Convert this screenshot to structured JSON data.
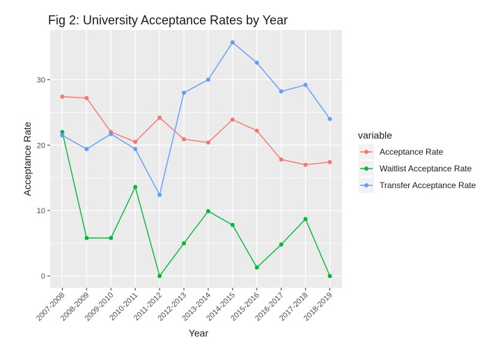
{
  "chart_data": {
    "type": "line",
    "title": "Fig 2: University Acceptance Rates by Year",
    "xlabel": "Year",
    "ylabel": "Acceptance Rate",
    "categories": [
      "2007-2008",
      "2008-2009",
      "2009-2010",
      "2010-2011",
      "2011-2012",
      "2012-2013",
      "2013-2014",
      "2014-2015",
      "2015-2016",
      "2016-2017",
      "2017-2018",
      "2018-2019"
    ],
    "ylim": [
      -1.8,
      37.6
    ],
    "yticks": [
      0,
      10,
      20,
      30
    ],
    "grid": true,
    "legend": {
      "title": "variable",
      "placement": "right"
    },
    "series": [
      {
        "name": "Acceptance Rate",
        "color": "#F8766D",
        "values": [
          27.4,
          27.2,
          22.0,
          20.5,
          24.2,
          20.9,
          20.4,
          23.9,
          22.2,
          17.8,
          17.0,
          17.4
        ]
      },
      {
        "name": "Waitlist Acceptance Rate",
        "color": "#00BA38",
        "values": [
          22.0,
          5.8,
          5.8,
          13.6,
          0.0,
          5.0,
          9.9,
          7.8,
          1.3,
          4.8,
          8.7,
          0.0
        ]
      },
      {
        "name": "Transfer Acceptance Rate",
        "color": "#619CFF",
        "values": [
          21.5,
          19.4,
          21.7,
          19.4,
          12.4,
          28.0,
          30.0,
          35.7,
          32.6,
          28.2,
          29.2,
          24.0
        ]
      }
    ]
  }
}
